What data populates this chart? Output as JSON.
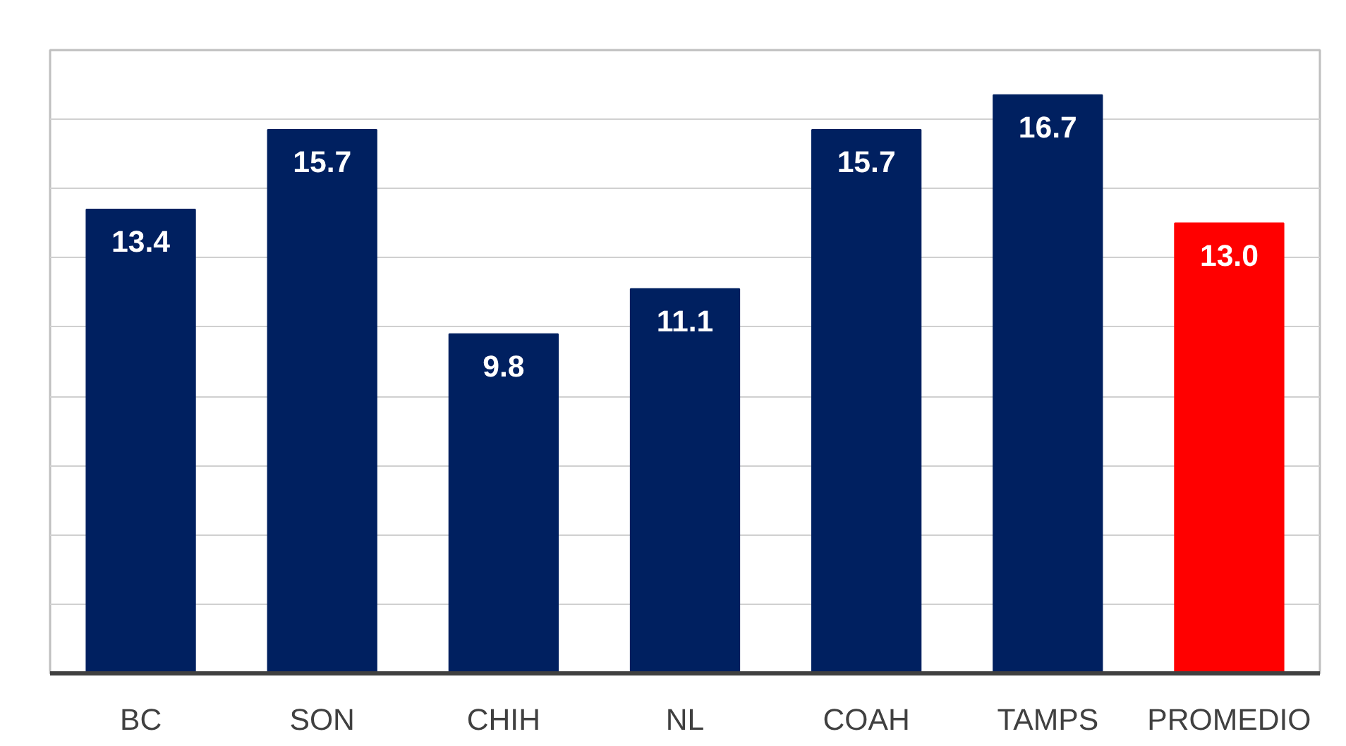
{
  "chart_data": {
    "type": "bar",
    "categories": [
      "BC",
      "SON",
      "CHIH",
      "NL",
      "COAH",
      "TAMPS",
      "PROMEDIO"
    ],
    "values": [
      13.4,
      15.7,
      9.8,
      11.1,
      15.7,
      16.7,
      13.0
    ],
    "colors": [
      "#002060",
      "#002060",
      "#002060",
      "#002060",
      "#002060",
      "#002060",
      "#ff0000"
    ],
    "value_labels": [
      "13.4",
      "15.7",
      "9.8",
      "11.1",
      "15.7",
      "16.7",
      "13.0"
    ],
    "ylim": [
      0,
      18
    ],
    "yticks": [
      {
        "value": 0,
        "label": null
      },
      {
        "value": 2,
        "label": null
      },
      {
        "value": 4,
        "label": null
      },
      {
        "value": 6,
        "label": null
      },
      {
        "value": 8,
        "label": null
      },
      {
        "value": 10,
        "label": null
      },
      {
        "value": 12,
        "label": null
      },
      {
        "value": 14,
        "label": null
      },
      {
        "value": 16,
        "label": null
      },
      {
        "value": 18,
        "label": null
      }
    ],
    "grid": "y",
    "tick_labels": "x"
  }
}
